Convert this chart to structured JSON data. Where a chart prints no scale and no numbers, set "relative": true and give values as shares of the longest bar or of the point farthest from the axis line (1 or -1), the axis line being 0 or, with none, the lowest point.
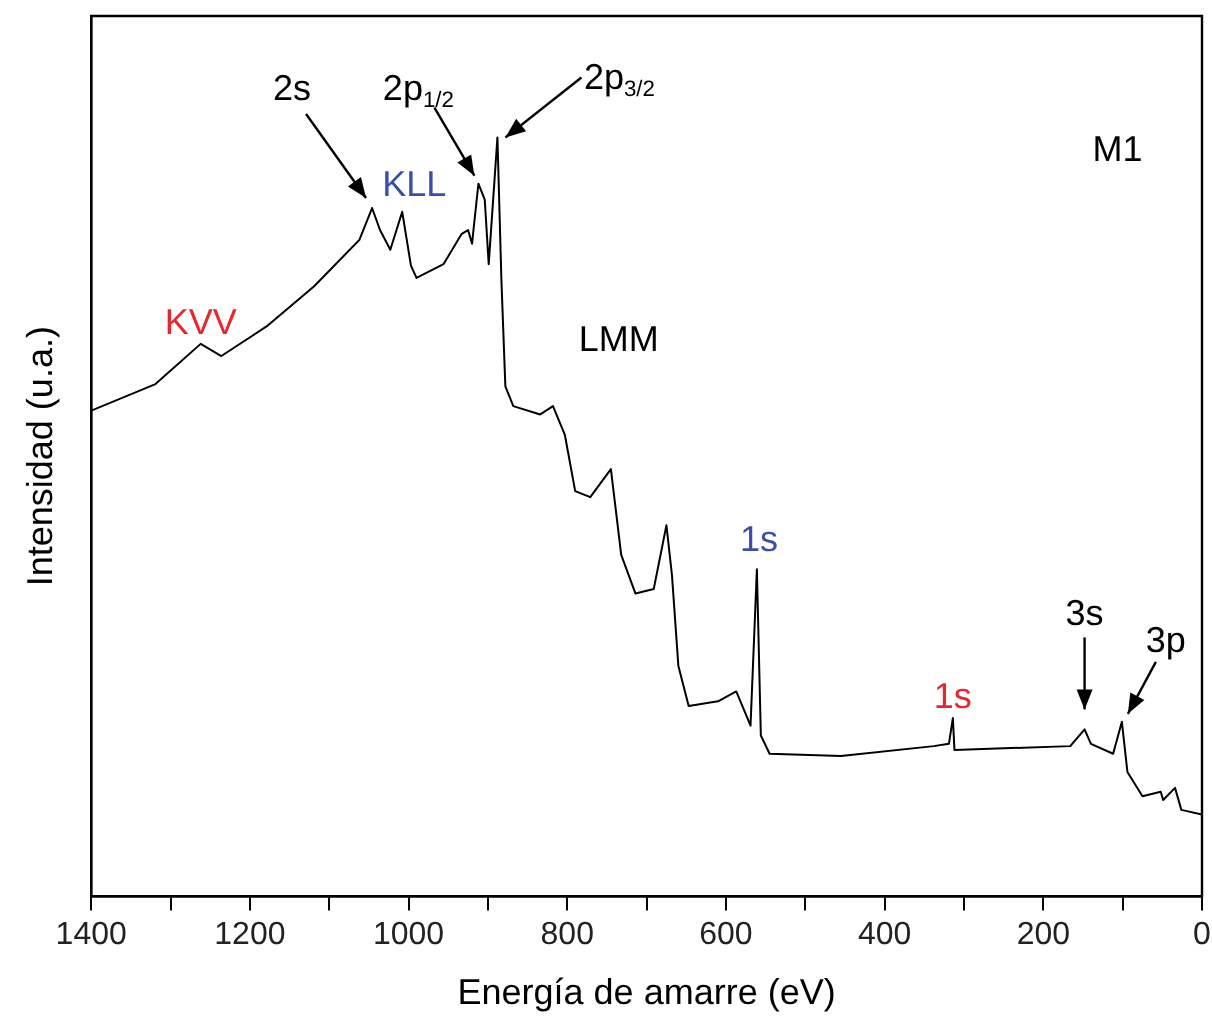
{
  "chart_data": {
    "type": "line",
    "xlabel": "Energía de amarre (eV)",
    "ylabel": "Intensidad (u.a.)",
    "relative": true,
    "grid": false,
    "legend": false,
    "marker": "none",
    "line_style": "solid",
    "xlim": [
      1400,
      0
    ],
    "xticks": [
      0,
      {
        "value": 100,
        "label": null
      },
      200,
      {
        "value": 300,
        "label": null
      },
      400,
      {
        "value": 500,
        "label": null
      },
      600,
      {
        "value": 700,
        "label": null
      },
      800,
      {
        "value": 900,
        "label": null
      },
      1000,
      {
        "value": 1100,
        "label": null
      },
      1200,
      {
        "value": 1300,
        "label": null
      },
      1400
    ],
    "x": [
      1400,
      1319,
      1262,
      1236,
      1179,
      1119,
      1062,
      1046,
      1036,
      1023,
      1008,
      997,
      990,
      956,
      933,
      925,
      920,
      912,
      904,
      899,
      888,
      883,
      878,
      868,
      834,
      818,
      803,
      790,
      771,
      745,
      732,
      714,
      691,
      675,
      668,
      660,
      647,
      610,
      587,
      569,
      561,
      556,
      545,
      455,
      338,
      319,
      314,
      312,
      166,
      148,
      140,
      112,
      101,
      94,
      75,
      52,
      49,
      34,
      26,
      0
    ],
    "series": [
      {
        "color": "#000000",
        "values": [
          0.64,
          0.675,
          0.728,
          0.712,
          0.751,
          0.804,
          0.865,
          0.907,
          0.878,
          0.852,
          0.902,
          0.831,
          0.815,
          0.833,
          0.873,
          0.878,
          0.86,
          0.939,
          0.918,
          0.833,
          1,
          0.812,
          0.672,
          0.646,
          0.635,
          0.646,
          0.608,
          0.534,
          0.526,
          0.563,
          0.45,
          0.399,
          0.405,
          0.489,
          0.423,
          0.304,
          0.251,
          0.257,
          0.27,
          0.225,
          0.431,
          0.212,
          0.188,
          0.185,
          0.198,
          0.201,
          0.235,
          0.193,
          0.198,
          0.22,
          0.201,
          0.188,
          0.23,
          0.164,
          0.132,
          0.138,
          0.127,
          0.143,
          0.114,
          0.108
        ]
      }
    ],
    "annotations": [
      {
        "text": "2s",
        "x": 1046,
        "y": 0.907
      },
      {
        "text": "2p$_{1/2}$",
        "x": 912,
        "y": 0.939
      },
      {
        "text": "2p$_{3/2}$",
        "x": 888,
        "y": 1
      },
      {
        "text": "KLL",
        "x": 1008,
        "y": 0.902
      },
      {
        "text": "KVV",
        "x": 1262,
        "y": 0.728
      },
      "LMM",
      {
        "text": "1s",
        "x": 561,
        "y": 0.431
      },
      {
        "text": "1s",
        "x": 314,
        "y": 0.235
      },
      {
        "text": "3s",
        "x": 148,
        "y": 0.22
      },
      {
        "text": "3p",
        "x": 101,
        "y": 0.23
      },
      "M1"
    ]
  }
}
